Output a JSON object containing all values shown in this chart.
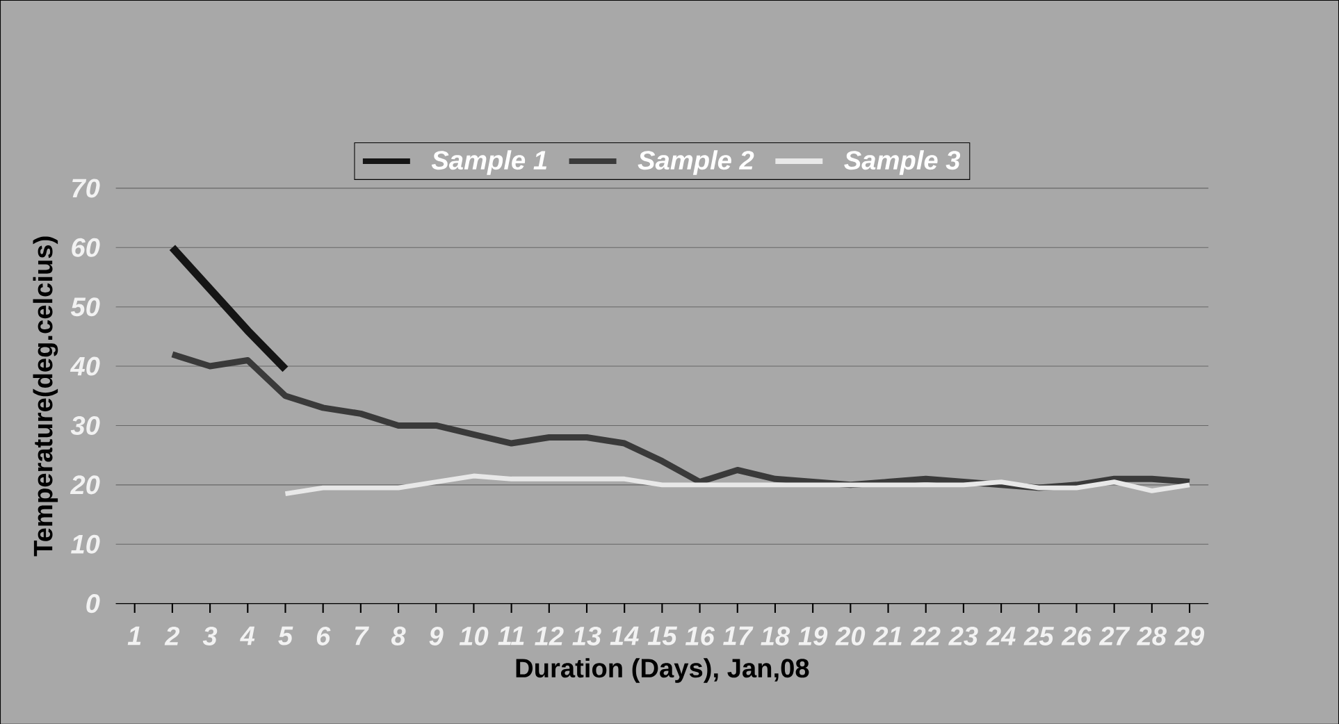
{
  "chart_data": {
    "type": "line",
    "xlabel": "Duration (Days), Jan,08",
    "ylabel": "Temperature(deg.celcius)",
    "categories": [
      "1",
      "2",
      "3",
      "4",
      "5",
      "6",
      "7",
      "8",
      "9",
      "10",
      "11",
      "12",
      "13",
      "14",
      "15",
      "16",
      "17",
      "18",
      "19",
      "20",
      "21",
      "22",
      "23",
      "24",
      "25",
      "26",
      "27",
      "28",
      "29"
    ],
    "series": [
      {
        "name": "Sample 1",
        "color": "#151515",
        "values": [
          null,
          60,
          53,
          46,
          39.5,
          null,
          null,
          null,
          null,
          null,
          null,
          null,
          null,
          null,
          null,
          null,
          null,
          null,
          null,
          null,
          null,
          null,
          null,
          null,
          null,
          null,
          null,
          null,
          null
        ]
      },
      {
        "name": "Sample 2",
        "color": "#3a3a3a",
        "values": [
          null,
          42,
          40,
          41,
          35,
          33,
          32,
          30,
          30,
          28.5,
          27,
          28,
          28,
          27,
          24,
          20.5,
          22.5,
          21,
          20.5,
          20,
          20.5,
          21,
          20.5,
          20,
          19.5,
          20,
          21,
          21,
          20.5
        ]
      },
      {
        "name": "Sample 3",
        "color": "#e8e8e8",
        "values": [
          null,
          null,
          null,
          null,
          18.5,
          19.5,
          19.5,
          19.5,
          20.5,
          21.5,
          21,
          21,
          21,
          21,
          20,
          20,
          20,
          20,
          20,
          20,
          20,
          20,
          20,
          20.5,
          19.5,
          19.5,
          20.5,
          19,
          20
        ]
      }
    ],
    "ylim": [
      0,
      70
    ],
    "yticks": [
      0,
      10,
      20,
      30,
      40,
      50,
      60,
      70
    ],
    "grid": "y",
    "legend": "top",
    "line_style": "solid",
    "marker": "none"
  }
}
